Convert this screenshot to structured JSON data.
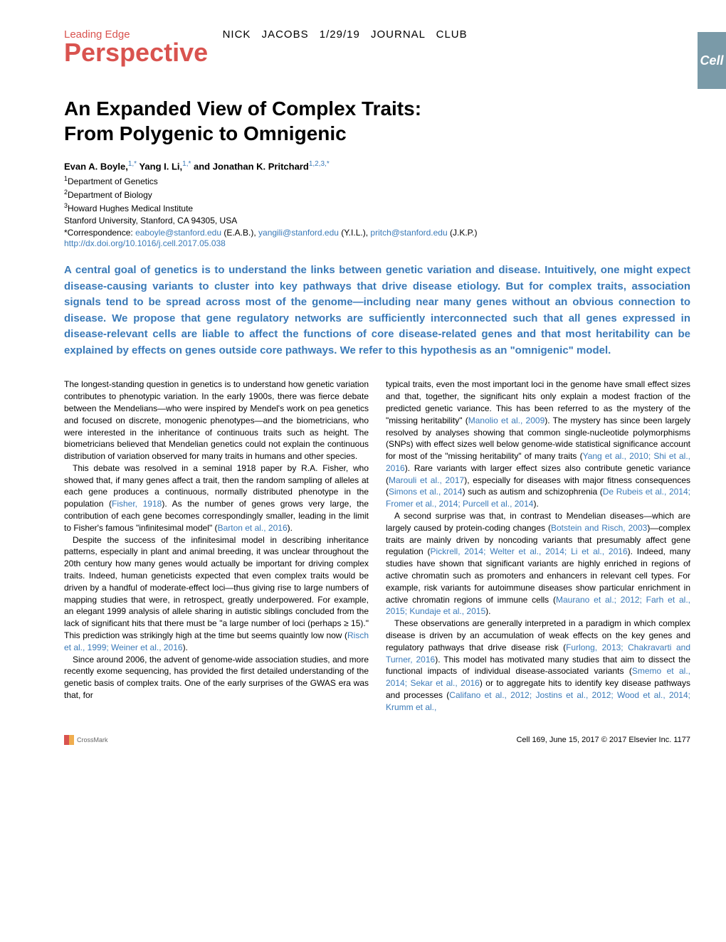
{
  "sidebar": {
    "label": "Cell"
  },
  "header": {
    "leading_edge": "Leading Edge",
    "annotation": "NICK JACOBS   1/29/19   JOURNAL CLUB",
    "perspective": "Perspective"
  },
  "title_line1": "An Expanded View of Complex Traits:",
  "title_line2": "From Polygenic to Omnigenic",
  "authors": {
    "a1": "Evan A. Boyle,",
    "a1sup": "1,*",
    "a2": " Yang I. Li,",
    "a2sup": "1,*",
    "a3": " and Jonathan K. Pritchard",
    "a3sup": "1,2,3,*"
  },
  "affils": {
    "l1sup": "1",
    "l1": "Department of Genetics",
    "l2sup": "2",
    "l2": "Department of Biology",
    "l3sup": "3",
    "l3": "Howard Hughes Medical Institute",
    "l4": "Stanford University, Stanford, CA 94305, USA"
  },
  "corr": {
    "label": "*Correspondence: ",
    "e1": "eaboyle@stanford.edu",
    "n1": " (E.A.B.), ",
    "e2": "yangili@stanford.edu",
    "n2": " (Y.I.L.), ",
    "e3": "pritch@stanford.edu",
    "n3": " (J.K.P.)"
  },
  "doi": "http://dx.doi.org/10.1016/j.cell.2017.05.038",
  "abstract": "A central goal of genetics is to understand the links between genetic variation and disease. Intuitively, one might expect disease-causing variants to cluster into key pathways that drive disease etiology. But for complex traits, association signals tend to be spread across most of the genome—including near many genes without an obvious connection to disease. We propose that gene regulatory networks are sufficiently interconnected such that all genes expressed in disease-relevant cells are liable to affect the functions of core disease-related genes and that most heritability can be explained by effects on genes outside core pathways. We refer to this hypothesis as an \"omnigenic\" model.",
  "col1": {
    "p1": "The longest-standing question in genetics is to understand how genetic variation contributes to phenotypic variation. In the early 1900s, there was fierce debate between the Mendelians—who were inspired by Mendel's work on pea genetics and focused on discrete, monogenic phenotypes—and the biometricians, who were interested in the inheritance of continuous traits such as height. The biometricians believed that Mendelian genetics could not explain the continuous distribution of variation observed for many traits in humans and other species.",
    "p2a": "This debate was resolved in a seminal 1918 paper by R.A. Fisher, who showed that, if many genes affect a trait, then the random sampling of alleles at each gene produces a continuous, normally distributed phenotype in the population (",
    "p2link1": "Fisher, 1918",
    "p2b": "). As the number of genes grows very large, the contribution of each gene becomes correspondingly smaller, leading in the limit to Fisher's famous \"infinitesimal model\" (",
    "p2link2": "Barton et al., 2016",
    "p2c": ").",
    "p3a": "Despite the success of the infinitesimal model in describing inheritance patterns, especially in plant and animal breeding, it was unclear throughout the 20th century how many genes would actually be important for driving complex traits. Indeed, human geneticists expected that even complex traits would be driven by a handful of moderate-effect loci—thus giving rise to large numbers of mapping studies that were, in retrospect, greatly underpowered. For example, an elegant 1999 analysis of allele sharing in autistic siblings concluded from the lack of significant hits that there must be \"a large number of loci (perhaps ≥ 15).\" This prediction was strikingly high at the time but seems quaintly low now (",
    "p3link1": "Risch et al., 1999; Weiner et al., 2016",
    "p3b": ").",
    "p4": "Since around 2006, the advent of genome-wide association studies, and more recently exome sequencing, has provided the first detailed understanding of the genetic basis of complex traits. One of the early surprises of the GWAS era was that, for"
  },
  "col2": {
    "p1a": "typical traits, even the most important loci in the genome have small effect sizes and that, together, the significant hits only explain a modest fraction of the predicted genetic variance. This has been referred to as the mystery of the \"missing heritability\" (",
    "p1link1": "Manolio et al., 2009",
    "p1b": "). The mystery has since been largely resolved by analyses showing that common single-nucleotide polymorphisms (SNPs) with effect sizes well below genome-wide statistical significance account for most of the \"missing heritability\" of many traits (",
    "p1link2": "Yang et al., 2010; Shi et al., 2016",
    "p1c": "). Rare variants with larger effect sizes also contribute genetic variance (",
    "p1link3": "Marouli et al., 2017",
    "p1d": "), especially for diseases with major fitness consequences (",
    "p1link4": "Simons et al., 2014",
    "p1e": ") such as autism and schizophrenia (",
    "p1link5": "De Rubeis et al., 2014; Fromer et al., 2014; Purcell et al., 2014",
    "p1f": ").",
    "p2a": "A second surprise was that, in contrast to Mendelian diseases—which are largely caused by protein-coding changes (",
    "p2link1": "Botstein and Risch, 2003",
    "p2b": ")—complex traits are mainly driven by noncoding variants that presumably affect gene regulation (",
    "p2link2": "Pickrell, 2014; Welter et al., 2014; Li et al., 2016",
    "p2c": "). Indeed, many studies have shown that significant variants are highly enriched in regions of active chromatin such as promoters and enhancers in relevant cell types. For example, risk variants for autoimmune diseases show particular enrichment in active chromatin regions of immune cells (",
    "p2link3": "Maurano et al.; 2012; Farh et al., 2015; Kundaje et al., 2015",
    "p2d": ").",
    "p3a": "These observations are generally interpreted in a paradigm in which complex disease is driven by an accumulation of weak effects on the key genes and regulatory pathways that drive disease risk (",
    "p3link1": "Furlong, 2013; Chakravarti and Turner, 2016",
    "p3b": "). This model has motivated many studies that aim to dissect the functional impacts of individual disease-associated variants (",
    "p3link2": "Smemo et al., 2014; Sekar et al., 2016",
    "p3c": ") or to aggregate hits to identify key disease pathways and processes (",
    "p3link3": "Califano et al., 2012; Jostins et al., 2012; Wood et al., 2014; Krumm et al.,"
  },
  "footer": {
    "crossmark": "CrossMark",
    "citation": "Cell 169, June 15, 2017 © 2017 Elsevier Inc.  1177"
  },
  "colors": {
    "accent": "#d9534f",
    "link": "#3a7ab8",
    "sidebar": "#7a9aa8"
  }
}
